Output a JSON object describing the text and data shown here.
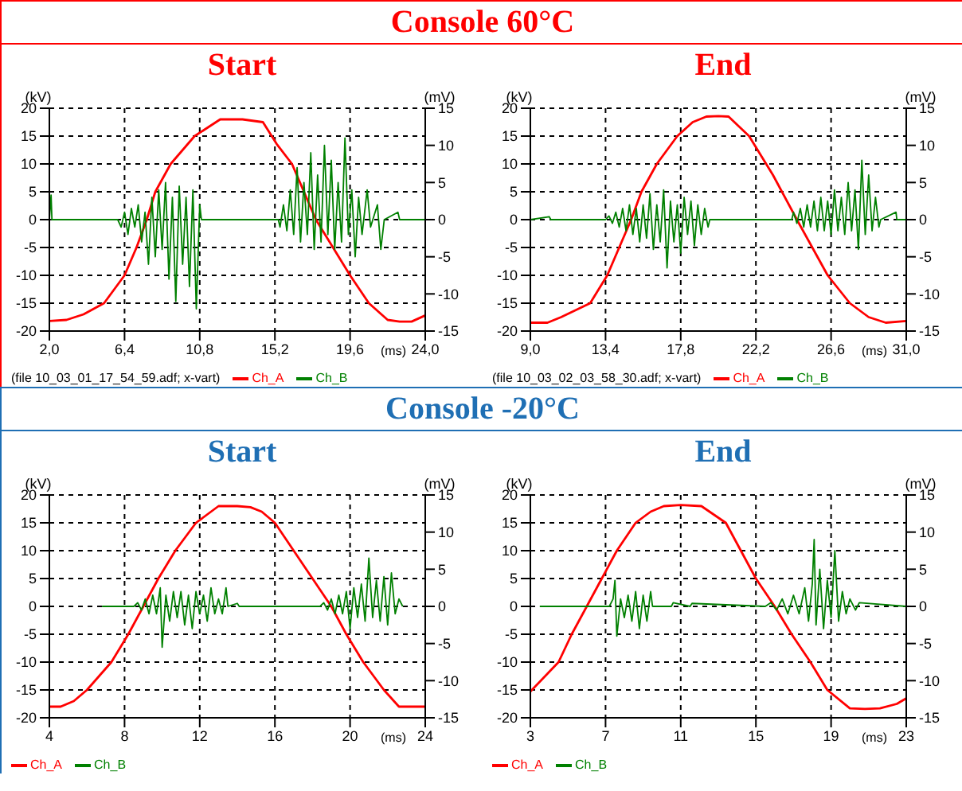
{
  "chart_data": [
    {
      "type": "line",
      "title": "Console 60°C",
      "subtitle": "Start",
      "xlabel": "(ms)",
      "ylabel": "(kV)",
      "y2label": "(mV)",
      "annotations": [
        "(file 10_03_01_17_54_59.adf; x-vart)"
      ],
      "xlim": [
        2,
        24
      ],
      "xticks": [
        {
          "value": 2,
          "label": "2,0"
        },
        {
          "value": 6.4,
          "label": "6,4"
        },
        {
          "value": 10.8,
          "label": "10,8"
        },
        {
          "value": 15.2,
          "label": "15,2"
        },
        {
          "value": 19.6,
          "label": "19,6"
        },
        {
          "value": 24,
          "label": "24,0"
        }
      ],
      "ylim": [
        -20,
        20
      ],
      "yticks": [
        -20,
        -15,
        -10,
        -5,
        0,
        5,
        10,
        15,
        20
      ],
      "y2lim": [
        -15,
        15
      ],
      "y2ticks": [
        -15,
        -10,
        -5,
        0,
        5,
        10,
        15
      ],
      "grid": true,
      "legend": "bottom",
      "series": [
        {
          "name": "Ch_A",
          "color": "#ff0000",
          "x": [
            2,
            3,
            4,
            5.2,
            6.4,
            7.1,
            7.7,
            8.2,
            9.1,
            10.5,
            12,
            13.3,
            14.5,
            15.3,
            16.2,
            17.6,
            18.6,
            19.6,
            20.7,
            21.8,
            22.5,
            23.2,
            24
          ],
          "values": [
            -18.2,
            -18,
            -17,
            -15,
            -10,
            -5,
            0,
            5,
            10,
            15,
            18,
            18,
            17.5,
            13.6,
            10,
            0,
            -5,
            -10,
            -15,
            -18,
            -18.3,
            -18.3,
            -17.2
          ]
        },
        {
          "name": "Ch_B",
          "color": "#008000",
          "axis": "y2",
          "x": [
            2,
            2.1,
            2.15,
            6,
            6.2,
            6.4,
            6.6,
            6.8,
            7,
            7.2,
            7.4,
            7.6,
            7.8,
            8,
            8.2,
            8.4,
            8.6,
            8.8,
            9,
            9.2,
            9.4,
            9.6,
            9.8,
            10,
            10.2,
            10.4,
            10.6,
            10.8,
            10.9,
            15.4,
            15.5,
            15.7,
            15.9,
            16.1,
            16.3,
            16.5,
            16.7,
            16.9,
            17.1,
            17.3,
            17.5,
            17.7,
            17.9,
            18.1,
            18.3,
            18.5,
            18.7,
            18.9,
            19.1,
            19.3,
            19.5,
            19.7,
            19.9,
            20.1,
            20.3,
            20.6,
            20.8,
            21.2,
            21.4,
            21.6,
            22.4,
            22.5,
            24
          ],
          "values": [
            0,
            3.3,
            0,
            0,
            -1,
            1,
            -2,
            1.5,
            -1,
            2,
            -3,
            1,
            -6,
            3,
            -5,
            4,
            -4,
            5,
            -8,
            3,
            -11,
            4.5,
            -6,
            3,
            -9,
            4,
            -12,
            2,
            0,
            0,
            -1,
            2,
            -1.5,
            4,
            -2,
            7,
            -3,
            5,
            -2,
            9,
            -4,
            6,
            -3,
            10,
            -2,
            8,
            -4,
            5,
            -3,
            11,
            -2,
            4,
            -5,
            3,
            -2,
            4,
            -1,
            2,
            -4,
            0,
            1,
            0,
            0
          ]
        }
      ]
    },
    {
      "type": "line",
      "subtitle": "End",
      "xlabel": "(ms)",
      "ylabel": "(kV)",
      "y2label": "(mV)",
      "annotations": [
        "(file 10_03_02_03_58_30.adf; x-vart)"
      ],
      "xlim": [
        9,
        31
      ],
      "xticks": [
        {
          "value": 9,
          "label": "9,0"
        },
        {
          "value": 13.4,
          "label": "13,4"
        },
        {
          "value": 17.8,
          "label": "17,8"
        },
        {
          "value": 22.2,
          "label": "22,2"
        },
        {
          "value": 26.6,
          "label": "26,6"
        },
        {
          "value": 31,
          "label": "31,0"
        }
      ],
      "ylim": [
        -20,
        20
      ],
      "yticks": [
        -20,
        -15,
        -10,
        -5,
        0,
        5,
        10,
        15,
        20
      ],
      "y2lim": [
        -15,
        15
      ],
      "y2ticks": [
        -15,
        -10,
        -5,
        0,
        5,
        10,
        15
      ],
      "grid": true,
      "legend": "bottom",
      "series": [
        {
          "name": "Ch_A",
          "color": "#ff0000",
          "x": [
            9,
            10,
            10.8,
            12.5,
            13.5,
            14.2,
            14.9,
            15.5,
            16.4,
            17.6,
            18.5,
            19.3,
            20,
            20.6,
            21.8,
            23.2,
            24.6,
            25.5,
            26.4,
            27.7,
            28.8,
            29.8,
            31
          ],
          "values": [
            -18.5,
            -18.5,
            -17.5,
            -15,
            -10,
            -5,
            0,
            5,
            10,
            15,
            17.5,
            18.5,
            18.6,
            18.5,
            15,
            8,
            0,
            -5,
            -10,
            -15,
            -17.5,
            -18.5,
            -18.2
          ]
        },
        {
          "name": "Ch_B",
          "color": "#008000",
          "axis": "y2",
          "x": [
            9,
            10.1,
            10.2,
            13.4,
            13.6,
            13.8,
            14,
            14.2,
            14.4,
            14.6,
            14.8,
            15,
            15.2,
            15.4,
            15.6,
            15.8,
            16,
            16.2,
            16.4,
            16.6,
            16.8,
            17,
            17.2,
            17.4,
            17.6,
            17.8,
            18,
            18.2,
            18.4,
            18.6,
            18.8,
            19,
            19.2,
            19.4,
            19.5,
            24.3,
            24.4,
            24.6,
            24.8,
            25,
            25.2,
            25.4,
            25.6,
            25.8,
            26,
            26.2,
            26.4,
            26.6,
            26.8,
            27,
            27.2,
            27.4,
            27.6,
            27.8,
            28,
            28.2,
            28.4,
            28.6,
            28.8,
            29,
            29.2,
            29.4,
            29.5,
            30.4,
            30.45,
            31
          ],
          "values": [
            0,
            0.4,
            0,
            0,
            0.5,
            -0.5,
            1,
            -1,
            1.5,
            -1.5,
            2,
            -2,
            1.5,
            -3,
            2,
            -2.5,
            3.5,
            -4,
            2,
            -3,
            4,
            -6.5,
            2.5,
            -3,
            2,
            -4.5,
            3,
            -2,
            2.5,
            -3.5,
            2,
            -2,
            1.5,
            -1,
            0,
            0,
            1,
            -0.5,
            1.5,
            -1,
            2,
            -1,
            2.5,
            -1.5,
            3,
            -1.5,
            2.5,
            -2,
            4,
            -1.5,
            3,
            -2,
            5,
            -1.5,
            4,
            -4,
            8,
            -2,
            6,
            -1.5,
            3,
            -1,
            0,
            1,
            0,
            0
          ]
        }
      ]
    },
    {
      "type": "line",
      "title": "Console -20°C",
      "subtitle": "Start",
      "xlabel": "(ms)",
      "ylabel": "(kV)",
      "y2label": "(mV)",
      "xlim": [
        4,
        24
      ],
      "xticks": [
        4,
        8,
        12,
        16,
        20,
        24
      ],
      "ylim": [
        -20,
        20
      ],
      "yticks": [
        -20,
        -15,
        -10,
        -5,
        0,
        5,
        10,
        15,
        20
      ],
      "y2lim": [
        -15,
        15
      ],
      "y2ticks": [
        -15,
        -10,
        -5,
        0,
        5,
        10,
        15
      ],
      "grid": true,
      "legend": "bottom",
      "series": [
        {
          "name": "Ch_A",
          "color": "#ff0000",
          "x": [
            4,
            4.6,
            5.3,
            6,
            7.3,
            8.2,
            9,
            9.8,
            10.7,
            11.8,
            13,
            14,
            14.7,
            15.3,
            16,
            17,
            18,
            19,
            19.8,
            20.7,
            21.8,
            22.6,
            24
          ],
          "values": [
            -18,
            -18,
            -17,
            -15,
            -10,
            -5,
            0,
            5,
            10,
            15,
            18,
            18,
            17.8,
            17,
            15,
            10,
            5,
            0,
            -5,
            -10,
            -15,
            -18,
            -18
          ]
        },
        {
          "name": "Ch_B",
          "color": "#008000",
          "axis": "y2",
          "x": [
            6.8,
            8.5,
            8.7,
            8.9,
            9.1,
            9.3,
            9.5,
            9.7,
            9.9,
            10,
            10.2,
            10.4,
            10.6,
            10.8,
            11,
            11.2,
            11.4,
            11.6,
            11.8,
            12,
            12.2,
            12.4,
            12.6,
            12.8,
            13,
            13.2,
            13.4,
            13.5,
            14,
            14.1,
            14.2,
            18.4,
            18.6,
            18.8,
            19,
            19.2,
            19.4,
            19.6,
            19.8,
            20,
            20.2,
            20.4,
            20.6,
            20.8,
            21,
            21.2,
            21.4,
            21.6,
            21.8,
            22,
            22.2,
            22.4,
            22.6,
            22.8
          ],
          "values": [
            0,
            0,
            0.5,
            -0.5,
            1,
            -1,
            1.5,
            -1,
            2.5,
            -5.5,
            1.5,
            -2,
            2,
            -1.5,
            2,
            -2.5,
            1.5,
            -3,
            2,
            -1,
            1.5,
            -2,
            2.5,
            -1,
            1,
            -1,
            2.5,
            0,
            0.4,
            0,
            0,
            0,
            0.5,
            -0.5,
            1,
            -1,
            1.5,
            -1,
            2,
            -3,
            2.5,
            -1.5,
            3,
            -2,
            6.5,
            -1.5,
            3.5,
            -2,
            4,
            -2.5,
            4.5,
            -1,
            1,
            0
          ]
        }
      ]
    },
    {
      "type": "line",
      "subtitle": "End",
      "xlabel": "(ms)",
      "ylabel": "(kV)",
      "y2label": "(mV)",
      "xlim": [
        3,
        23
      ],
      "xticks": [
        3,
        7,
        11,
        15,
        19,
        23
      ],
      "ylim": [
        -20,
        20
      ],
      "yticks": [
        -20,
        -15,
        -10,
        -5,
        0,
        5,
        10,
        15,
        20
      ],
      "y2lim": [
        -15,
        15
      ],
      "y2ticks": [
        -15,
        -10,
        -5,
        0,
        5,
        10,
        15
      ],
      "grid": true,
      "legend": "bottom",
      "series": [
        {
          "name": "Ch_A",
          "color": "#ff0000",
          "x": [
            3,
            4.5,
            5.2,
            6,
            6.8,
            7.6,
            8.6,
            9.4,
            10.1,
            11,
            12.1,
            13.4,
            14.2,
            15,
            16,
            16.9,
            17.9,
            18.8,
            20,
            20.8,
            21.6,
            22.5,
            23
          ],
          "values": [
            -15.3,
            -10,
            -5,
            0,
            5,
            10,
            15,
            17,
            18,
            18.2,
            18,
            15,
            10,
            5,
            0,
            -5,
            -10,
            -15,
            -18.3,
            -18.4,
            -18.3,
            -17.5,
            -16.5
          ]
        },
        {
          "name": "Ch_B",
          "color": "#008000",
          "axis": "y2",
          "x": [
            3.5,
            7.2,
            7.4,
            7.5,
            7.6,
            7.8,
            8,
            8.2,
            8.4,
            8.6,
            8.8,
            9,
            9.2,
            9.4,
            9.5,
            10.5,
            10.6,
            11.5,
            11.6,
            15.5,
            15.8,
            16.1,
            16.4,
            16.7,
            17,
            17.3,
            17.6,
            17.8,
            18,
            18.1,
            18.2,
            18.4,
            18.6,
            18.8,
            19,
            19.2,
            19.4,
            19.6,
            19.8,
            20,
            20.3,
            20.5,
            23
          ],
          "values": [
            0,
            0,
            1,
            3.5,
            -4,
            1,
            -1.5,
            1.5,
            -2,
            2,
            -3,
            1.5,
            -2,
            2,
            0,
            0,
            0.5,
            0,
            0.4,
            0,
            0.5,
            -0.5,
            1,
            -1,
            1.5,
            -1,
            2.5,
            -2,
            3,
            9,
            -2.5,
            5,
            -3,
            3.5,
            -1.5,
            7.5,
            -2,
            2,
            -1,
            1,
            -0.5,
            0.5,
            0
          ]
        }
      ]
    }
  ]
}
